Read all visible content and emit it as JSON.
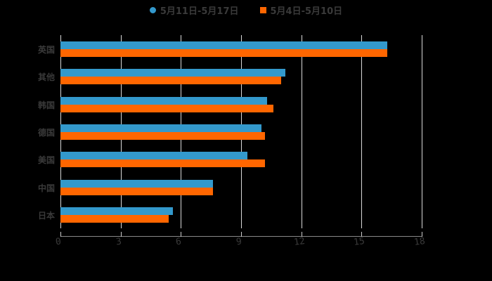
{
  "legend": [
    {
      "label": "5月11日-5月17日",
      "color": "#3399cc",
      "shape": "circle"
    },
    {
      "label": "5月4日-5月10日",
      "color": "#ff6600",
      "shape": "square"
    }
  ],
  "chart_data": {
    "type": "bar",
    "orientation": "horizontal",
    "title": "",
    "xlabel": "",
    "ylabel": "",
    "categories": [
      "英国",
      "其他",
      "韩国",
      "德国",
      "美国",
      "中国",
      "日本"
    ],
    "series": [
      {
        "name": "5月11日-5月17日",
        "color": "#3399cc",
        "values": [
          16.3,
          11.2,
          10.3,
          10.0,
          9.3,
          7.6,
          5.6
        ]
      },
      {
        "name": "5月4日-5月10日",
        "color": "#ff6600",
        "values": [
          16.3,
          11.0,
          10.6,
          10.2,
          10.2,
          7.6,
          5.4
        ]
      }
    ],
    "xlim": [
      0,
      18
    ],
    "xticks": [
      "0",
      "3",
      "6",
      "9",
      "12",
      "15",
      "18"
    ],
    "grid": true,
    "legend_position": "top"
  }
}
